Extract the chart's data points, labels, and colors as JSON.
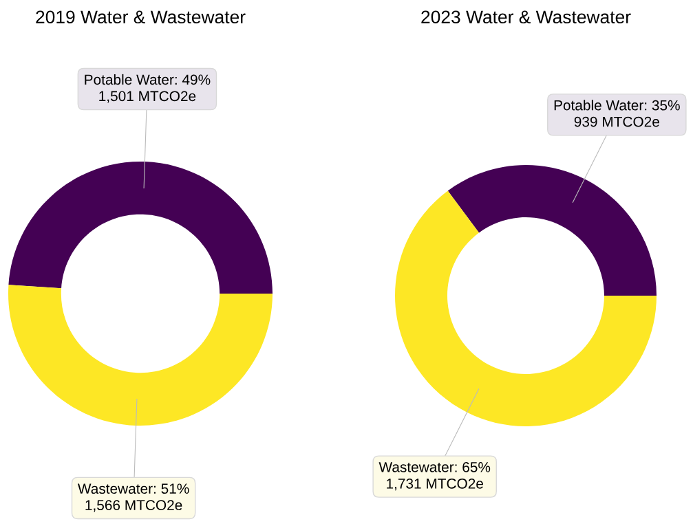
{
  "chart_data": [
    {
      "type": "donut",
      "title": "2019 Water & Wastewater",
      "categories": [
        "Potable Water",
        "Wastewater"
      ],
      "values": [
        1501,
        1566
      ],
      "colors": [
        "#440154",
        "#fde725"
      ],
      "value_labels": [
        "49%\n1,501 MTCO2e",
        "51%\n1,566 MTCO2e"
      ],
      "legend": false
    },
    {
      "type": "donut",
      "title": "2023 Water & Wastewater",
      "categories": [
        "Potable Water",
        "Wastewater"
      ],
      "values": [
        939,
        1731
      ],
      "colors": [
        "#440154",
        "#fde725"
      ],
      "value_labels": [
        "35%\n939 MTCO2e",
        "65%\n1,731 MTCO2e"
      ],
      "legend": false
    }
  ]
}
